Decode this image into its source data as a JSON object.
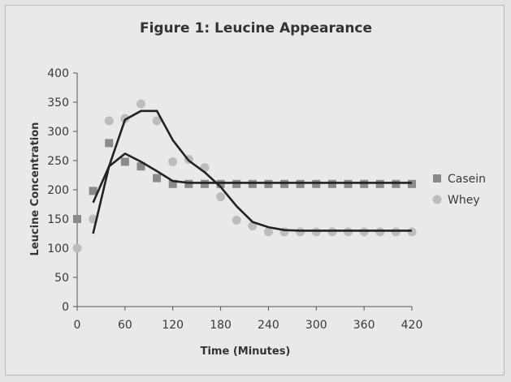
{
  "chart_data": {
    "type": "scatter",
    "title": "Figure 1: Leucine Appearance",
    "xlabel": "Time (Minutes)",
    "ylabel": "Leucine Concentration",
    "xlim": [
      0,
      420
    ],
    "ylim": [
      0,
      400
    ],
    "xticks": [
      0,
      60,
      120,
      180,
      240,
      300,
      360,
      420
    ],
    "yticks": [
      0,
      50,
      100,
      150,
      200,
      250,
      300,
      350,
      400
    ],
    "grid": false,
    "legend_position": "right",
    "series": [
      {
        "name": "Casein",
        "marker": "square",
        "color": "#8a8a8a",
        "points": {
          "x": [
            0,
            20,
            40,
            60,
            80,
            100,
            120,
            140,
            160,
            180,
            200,
            220,
            240,
            260,
            280,
            300,
            320,
            340,
            360,
            380,
            400,
            420
          ],
          "y": [
            150,
            198,
            280,
            248,
            240,
            220,
            210,
            210,
            210,
            210,
            210,
            210,
            210,
            210,
            210,
            210,
            210,
            210,
            210,
            210,
            210,
            210
          ]
        },
        "trend": {
          "x": [
            20,
            40,
            60,
            80,
            100,
            120,
            140,
            160,
            180,
            200,
            220,
            240,
            260,
            280,
            300,
            320,
            340,
            360,
            380,
            400,
            420
          ],
          "y": [
            178,
            240,
            262,
            248,
            232,
            215,
            212,
            212,
            212,
            212,
            212,
            212,
            212,
            212,
            212,
            212,
            212,
            212,
            212,
            212,
            212
          ]
        }
      },
      {
        "name": "Whey",
        "marker": "circle",
        "color": "#bdbdbd",
        "points": {
          "x": [
            0,
            20,
            40,
            60,
            80,
            100,
            120,
            140,
            160,
            180,
            200,
            220,
            240,
            260,
            280,
            300,
            320,
            340,
            360,
            380,
            400,
            420
          ],
          "y": [
            100,
            150,
            318,
            322,
            347,
            318,
            248,
            252,
            238,
            188,
            148,
            138,
            128,
            128,
            128,
            128,
            128,
            128,
            128,
            128,
            128,
            128
          ]
        },
        "trend": {
          "x": [
            20,
            40,
            60,
            80,
            100,
            120,
            140,
            160,
            180,
            200,
            220,
            240,
            260,
            280,
            300,
            320,
            340,
            360,
            380,
            400,
            420
          ],
          "y": [
            125,
            240,
            320,
            335,
            335,
            285,
            250,
            230,
            205,
            172,
            145,
            136,
            131,
            130,
            130,
            130,
            130,
            130,
            130,
            130,
            130
          ]
        }
      }
    ],
    "colors": {
      "line": "#222222",
      "axis": "#555555",
      "background": "#e9e9e9"
    }
  }
}
